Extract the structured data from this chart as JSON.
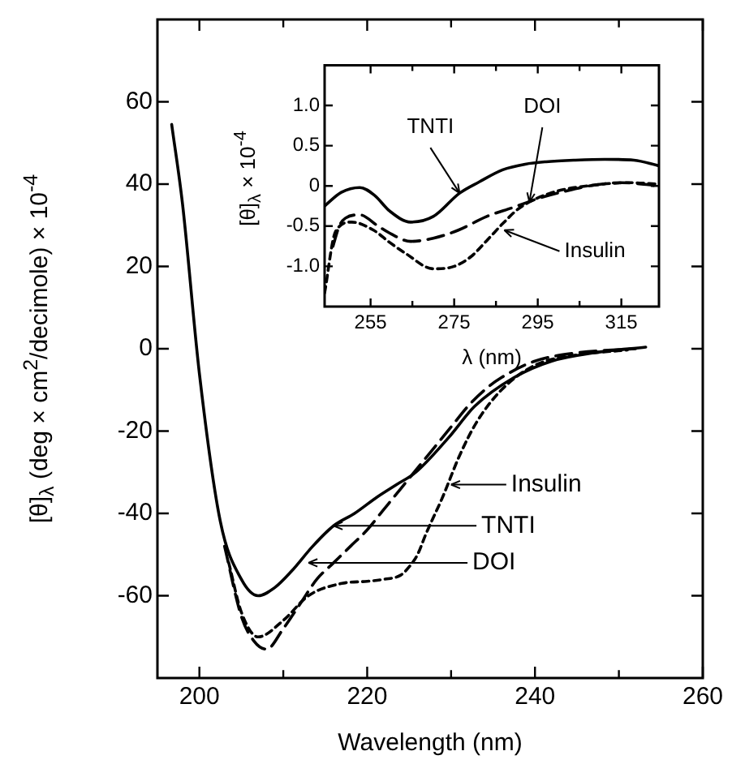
{
  "chart_data": [
    {
      "type": "line",
      "xlabel": "Wavelength (nm)",
      "ylabel": "[θ]$_{λ}$  (deg × cm$^{2}$/decimole) × 10$^{-4}$",
      "xlim": [
        195,
        260
      ],
      "xticks": [
        200,
        {
          "value": 210,
          "label": null
        },
        220,
        {
          "value": 230,
          "label": null
        },
        240,
        {
          "value": 250,
          "label": null
        },
        260
      ],
      "ylim": [
        -80,
        80
      ],
      "yticks": [
        -60,
        -40,
        -20,
        0,
        20,
        40,
        60
      ],
      "grid": false,
      "legend": false,
      "marker": "none",
      "series": [
        {
          "color": "#000000",
          "line_style": "solid",
          "x": [
            196.7,
            198,
            200,
            202.5,
            205,
            207,
            209,
            211,
            213.5,
            216,
            218.5,
            221.2,
            223.5,
            225.8,
            229.7,
            232.8,
            237.5,
            242,
            247,
            253.2
          ],
          "values": [
            54.5,
            35,
            -6,
            -42,
            -56,
            -60,
            -58,
            -54,
            -48,
            -43,
            -40,
            -36,
            -33,
            -30,
            -21.6,
            -14,
            -7,
            -3,
            -1,
            0.4
          ]
        },
        {
          "color": "#000000",
          "line_style": "dashed",
          "x": [
            203,
            205,
            206.5,
            208,
            210,
            212,
            214,
            216,
            218,
            220,
            222,
            224,
            226,
            228,
            230,
            232,
            234,
            236,
            240,
            245,
            252
          ],
          "values": [
            -48,
            -65,
            -71,
            -73,
            -68,
            -62,
            -56,
            -52,
            -48,
            -44,
            -39,
            -34,
            -29,
            -24,
            -19,
            -14,
            -10,
            -7,
            -3,
            -1,
            0
          ]
        },
        {
          "color": "#000000",
          "line_style": "dotted",
          "x": [
            203.5,
            205,
            207,
            210,
            213,
            217,
            220,
            222,
            224,
            225,
            226,
            227,
            229,
            231,
            233,
            236,
            240,
            245,
            251
          ],
          "values": [
            -52,
            -64,
            -70,
            -66,
            -60,
            -57,
            -56.5,
            -56,
            -55,
            -53,
            -50,
            -45,
            -36,
            -26,
            -18,
            -10,
            -4,
            -1.5,
            -0.3
          ]
        }
      ],
      "annotations": [
        {
          "text": "Insulin",
          "x": 230,
          "y": -33
        },
        {
          "text": "TNTI",
          "x": 216,
          "y": -43
        },
        {
          "text": "DOI",
          "x": 213,
          "y": -52
        }
      ]
    },
    {
      "type": "line",
      "xlabel": "λ (nm)",
      "ylabel": "[θ]$_{λ}$ × 10$^{-4}$",
      "xlim": [
        244,
        324
      ],
      "xticks": [
        255,
        {
          "value": 265,
          "label": null
        },
        275,
        {
          "value": 285,
          "label": null
        },
        295,
        {
          "value": 305,
          "label": null
        },
        315
      ],
      "ylim": [
        -1.5,
        1.5
      ],
      "yticks": [
        {
          "value": -1,
          "label": "-1.0"
        },
        -0.5,
        0,
        0.5,
        {
          "value": 1,
          "label": "1.0"
        }
      ],
      "grid": false,
      "legend": false,
      "marker": "none",
      "series": [
        {
          "color": "#000000",
          "line_style": "solid",
          "x": [
            244,
            248,
            252.4,
            256,
            259.5,
            264.6,
            270,
            276.3,
            281,
            286.6,
            292,
            297,
            304,
            311,
            318,
            324
          ],
          "values": [
            -0.25,
            -0.08,
            -0.02,
            -0.12,
            -0.31,
            -0.45,
            -0.38,
            -0.09,
            0.05,
            0.2,
            0.27,
            0.3,
            0.32,
            0.33,
            0.32,
            0.25
          ]
        },
        {
          "color": "#000000",
          "line_style": "dashed",
          "x": [
            246,
            247.5,
            249,
            252.4,
            256.8,
            260,
            264.6,
            270,
            276,
            282.8,
            289,
            295.5,
            302,
            308.5,
            315,
            324
          ],
          "values": [
            -0.75,
            -0.5,
            -0.4,
            -0.36,
            -0.5,
            -0.6,
            -0.69,
            -0.65,
            -0.55,
            -0.38,
            -0.27,
            -0.15,
            -0.06,
            0.01,
            0.04,
            0
          ]
        },
        {
          "color": "#000000",
          "line_style": "dotted",
          "x": [
            244,
            246.6,
            250.5,
            255.7,
            259.5,
            263.4,
            270,
            275,
            279,
            282.8,
            286.6,
            290.5,
            298,
            308.5,
            317,
            324
          ],
          "values": [
            -1.33,
            -0.57,
            -0.45,
            -0.55,
            -0.7,
            -0.84,
            -1.03,
            -1.0,
            -0.88,
            -0.68,
            -0.47,
            -0.28,
            -0.09,
            0.01,
            0.04,
            0.02
          ]
        }
      ],
      "annotations": [
        {
          "text": "TNTI",
          "x": 276.3,
          "y": -0.09
        },
        {
          "text": "DOI",
          "x": 293,
          "y": -0.2
        },
        {
          "text": "Insulin",
          "x": 287,
          "y": -0.55
        }
      ]
    }
  ]
}
